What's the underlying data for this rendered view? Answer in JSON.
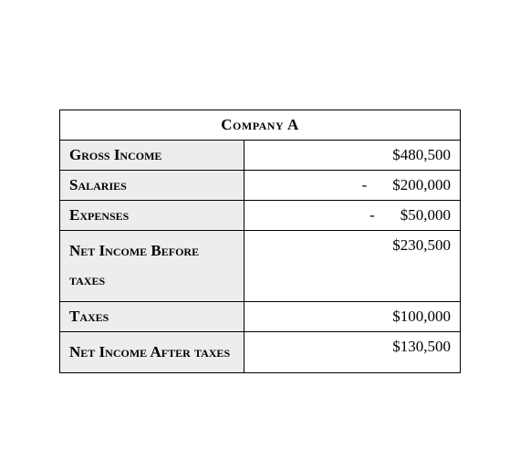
{
  "table": {
    "title": "Company A",
    "columns": [
      "label",
      "value"
    ],
    "label_bg": "#ededed",
    "border_color": "#000000",
    "rows": [
      {
        "label": "Gross Income",
        "value": "$480,500",
        "negative": false
      },
      {
        "label": "Salaries",
        "value": "$200,000",
        "negative": true
      },
      {
        "label": "Expenses",
        "value": "$50,000",
        "negative": true
      },
      {
        "label": "Net Income Before taxes",
        "value": "$230,500",
        "negative": false
      },
      {
        "label": "Taxes",
        "value": "$100,000",
        "negative": false
      },
      {
        "label": "Net Income After taxes",
        "value": "$130,500",
        "negative": false
      }
    ]
  }
}
